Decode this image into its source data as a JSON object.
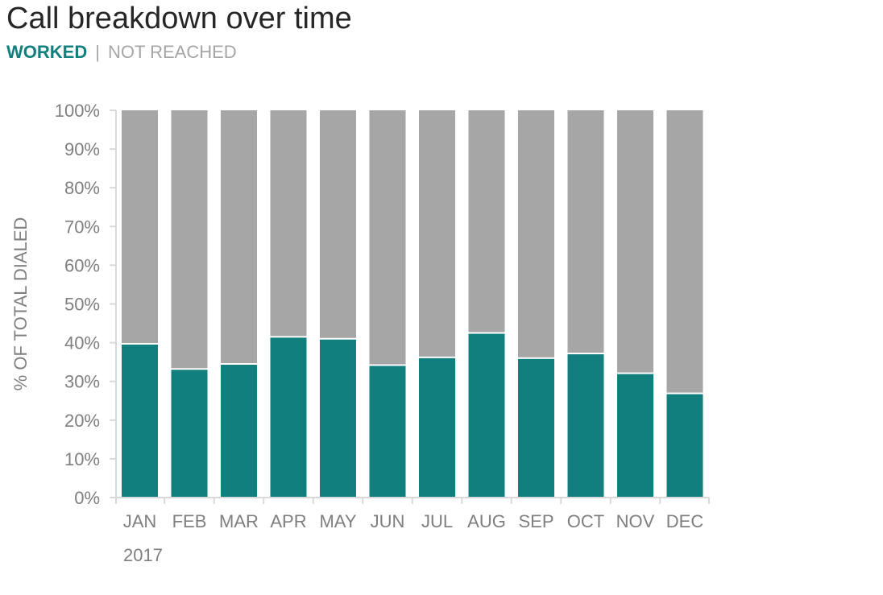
{
  "title": "Call breakdown over time",
  "subtitle": {
    "worked": "WORKED",
    "separator": "|",
    "not_reached": "NOT REACHED"
  },
  "colors": {
    "worked": "#127f7f",
    "not_reached": "#a6a6a6",
    "axis": "#d9d9d9",
    "text": "#7f7f7f"
  },
  "chart_data": {
    "type": "bar",
    "stacked": true,
    "categories": [
      "JAN",
      "FEB",
      "MAR",
      "APR",
      "MAY",
      "JUN",
      "JUL",
      "AUG",
      "SEP",
      "OCT",
      "NOV",
      "DEC"
    ],
    "category_group_label": "2017",
    "series": [
      {
        "name": "WORKED",
        "values": [
          39.5,
          33,
          34.3,
          41.3,
          40.8,
          34,
          36,
          42.3,
          35.8,
          37,
          31.9,
          26.7
        ]
      },
      {
        "name": "NOT REACHED",
        "values": [
          60.5,
          67,
          65.7,
          58.7,
          59.2,
          66,
          64,
          57.7,
          64.2,
          63,
          68.1,
          73.3
        ]
      }
    ],
    "ylabel": "% OF TOTAL DIALED",
    "xlabel": "",
    "ylim": [
      0,
      100
    ],
    "yticks": [
      "0%",
      "10%",
      "20%",
      "30%",
      "40%",
      "50%",
      "60%",
      "70%",
      "80%",
      "90%",
      "100%"
    ],
    "grid": false,
    "legend": "subtitle"
  }
}
